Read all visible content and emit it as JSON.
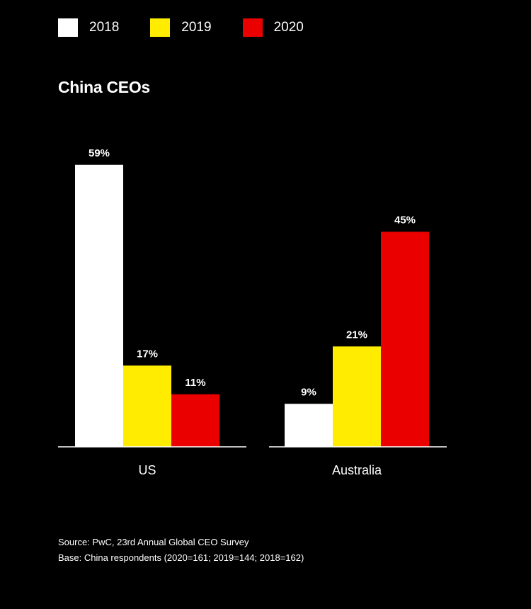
{
  "colors": {
    "background": "#000000",
    "2018": "#ffffff",
    "2019": "#ffec00",
    "2020": "#eb0000",
    "axis": "#ffffff"
  },
  "legend": [
    {
      "label": "2018",
      "color": "#ffffff"
    },
    {
      "label": "2019",
      "color": "#ffec00"
    },
    {
      "label": "2020",
      "color": "#eb0000"
    }
  ],
  "title": "China CEOs",
  "chart_data": {
    "type": "bar",
    "title": "China CEOs",
    "categories": [
      "US",
      "Australia"
    ],
    "series": [
      {
        "name": "2018",
        "color": "#ffffff",
        "values": [
          59,
          9
        ],
        "labels": [
          "59%",
          "9%"
        ]
      },
      {
        "name": "2019",
        "color": "#ffec00",
        "values": [
          17,
          21
        ],
        "labels": [
          "17%",
          "21%"
        ]
      },
      {
        "name": "2020",
        "color": "#eb0000",
        "values": [
          11,
          45
        ],
        "labels": [
          "11%",
          "45%"
        ]
      }
    ],
    "xlabel": "",
    "ylabel": "",
    "ylim": [
      0,
      60
    ],
    "grid": false,
    "legend_position": "top-left"
  },
  "footnotes": {
    "source": "Source: PwC, 23rd Annual Global CEO Survey",
    "base": "Base: China respondents (2020=161; 2019=144; 2018=162)"
  }
}
